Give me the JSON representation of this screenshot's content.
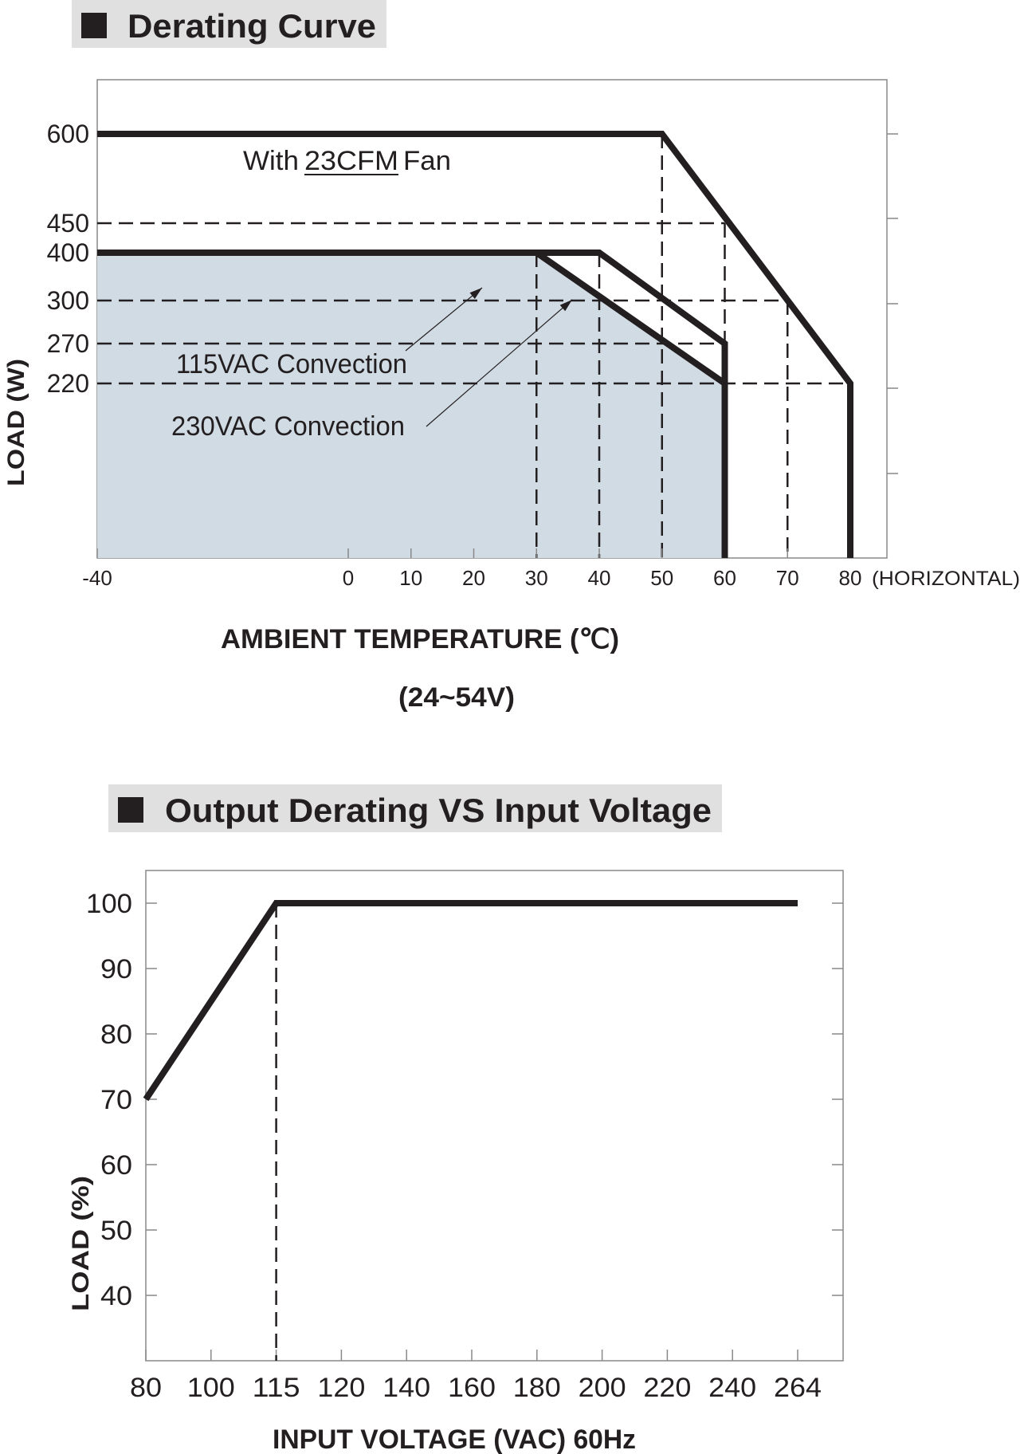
{
  "chart_data": [
    {
      "type": "line",
      "title": "Derating Curve",
      "xlabel": "AMBIENT TEMPERATURE (℃)",
      "xlabel_note": "(24~54V)",
      "ylabel": "LOAD (W)",
      "x_ticks": [
        -40,
        0,
        10,
        20,
        30,
        40,
        50,
        60,
        70,
        80
      ],
      "x_tick_suffix": "(HORIZONTAL)",
      "y_ticks": [
        600,
        450,
        400,
        300,
        270,
        220
      ],
      "xlim": [
        -40,
        80
      ],
      "grid": false,
      "series": [
        {
          "name": "With 23CFM Fan",
          "x": [
            -40,
            50,
            80,
            80
          ],
          "y": [
            600,
            600,
            220,
            0
          ]
        },
        {
          "name": "115VAC Convection",
          "x": [
            -40,
            30,
            60,
            60
          ],
          "y": [
            400,
            400,
            220,
            0
          ],
          "filled": true
        },
        {
          "name": "230VAC Convection",
          "x": [
            -40,
            40,
            60,
            60
          ],
          "y": [
            400,
            400,
            270,
            0
          ]
        }
      ],
      "reference_lines": {
        "horizontal": [
          {
            "y": 450,
            "x_end": 60
          },
          {
            "y": 300,
            "x_end": 70
          },
          {
            "y": 270,
            "x_end": 60
          },
          {
            "y": 220,
            "x_end": 80
          }
        ],
        "vertical": [
          {
            "x": 30,
            "y_top": 400
          },
          {
            "x": 40,
            "y_top": 400
          },
          {
            "x": 50,
            "y_top": 600
          },
          {
            "x": 60,
            "y_top": 450
          },
          {
            "x": 70,
            "y_top": 300
          }
        ]
      },
      "annotations": {
        "fan_prefix": "With",
        "fan_cfm": "23CFM",
        "fan_suffix": "Fan",
        "label_115": "115VAC Convection",
        "label_230": "230VAC Convection"
      },
      "colors": {
        "line": "#231f20",
        "fill": "#d1dbe4",
        "dash": "#231f20"
      }
    },
    {
      "type": "line",
      "title": "Output Derating VS Input Voltage",
      "xlabel": "INPUT VOLTAGE (VAC) 60Hz",
      "ylabel": "LOAD (%)",
      "x_ticks": [
        80,
        100,
        115,
        120,
        140,
        160,
        180,
        200,
        220,
        240,
        264
      ],
      "y_ticks": [
        100,
        90,
        80,
        70,
        60,
        50,
        40
      ],
      "grid": false,
      "series": [
        {
          "x": [
            80,
            115,
            264
          ],
          "y": [
            70,
            100,
            100
          ]
        }
      ],
      "reference_lines": {
        "vertical": [
          {
            "x": 115,
            "y_top": 100
          }
        ]
      },
      "colors": {
        "line": "#231f20"
      }
    }
  ]
}
